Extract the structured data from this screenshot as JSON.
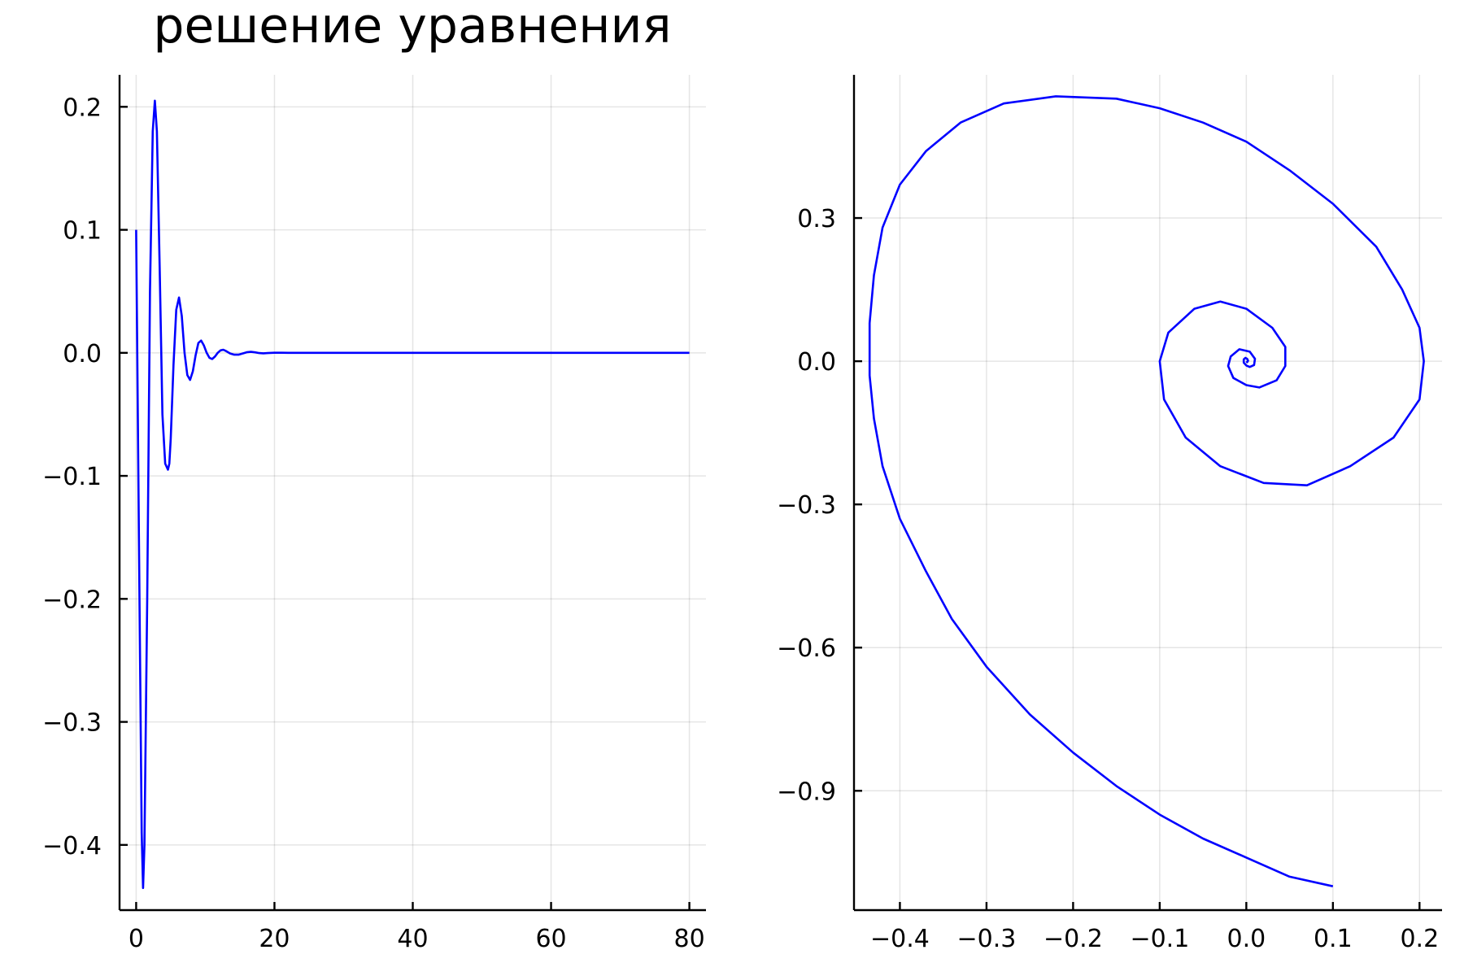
{
  "chart_data": [
    {
      "type": "line",
      "title": "решение уравнения",
      "xlabel": "",
      "ylabel": "",
      "xlim": [
        -2.4,
        82.4
      ],
      "ylim": [
        -0.453,
        0.226
      ],
      "xticks": [
        0,
        20,
        40,
        60,
        80
      ],
      "xtick_labels": [
        "0",
        "20",
        "40",
        "60",
        "80"
      ],
      "yticks": [
        -0.4,
        -0.3,
        -0.2,
        -0.1,
        0.0,
        0.1,
        0.2
      ],
      "ytick_labels": [
        "−0.4",
        "−0.3",
        "−0.2",
        "−0.1",
        "0.0",
        "0.1",
        "0.2"
      ],
      "grid": true,
      "legend": "none",
      "series": [
        {
          "color": "#0000ff",
          "x": [
            0,
            0.4,
            0.8,
            1.0,
            1.2,
            1.6,
            2.0,
            2.4,
            2.7,
            3.0,
            3.4,
            3.8,
            4.2,
            4.6,
            4.8,
            5.0,
            5.4,
            5.8,
            6.2,
            6.6,
            7.0,
            7.4,
            7.8,
            8.2,
            8.6,
            9.0,
            9.4,
            9.8,
            10.2,
            10.6,
            11.0,
            11.4,
            11.8,
            12.2,
            12.6,
            13.0,
            13.6,
            14.2,
            14.8,
            15.4,
            16.0,
            16.6,
            17.2,
            17.8,
            18.4,
            19.0,
            20.0,
            21.0,
            22.0,
            24.0,
            26.0,
            30.0,
            40.0,
            50.0,
            60.0,
            70.0,
            80.0
          ],
          "y": [
            0.1,
            -0.15,
            -0.39,
            -0.435,
            -0.4,
            -0.2,
            0.05,
            0.18,
            0.205,
            0.18,
            0.07,
            -0.05,
            -0.09,
            -0.095,
            -0.09,
            -0.07,
            -0.01,
            0.035,
            0.045,
            0.03,
            0.0,
            -0.018,
            -0.022,
            -0.015,
            -0.002,
            0.008,
            0.01,
            0.006,
            0.0,
            -0.004,
            -0.005,
            -0.003,
            0.0,
            0.002,
            0.0025,
            0.0015,
            -0.0005,
            -0.0015,
            -0.0015,
            -0.0005,
            0.0005,
            0.0008,
            0.0004,
            -0.0002,
            -0.0004,
            -0.0002,
            0.0001,
            0.0001,
            0.0,
            0.0,
            0.0,
            0.0,
            0.0,
            0.0,
            0.0,
            0.0,
            0.0
          ]
        }
      ]
    },
    {
      "type": "line",
      "title": "",
      "xlabel": "",
      "ylabel": "",
      "xlim": [
        -0.453,
        0.226
      ],
      "ylim": [
        -1.15,
        0.6
      ],
      "xticks": [
        -0.4,
        -0.3,
        -0.2,
        -0.1,
        0.0,
        0.1,
        0.2
      ],
      "xtick_labels": [
        "−0.4",
        "−0.3",
        "−0.2",
        "−0.1",
        "0.0",
        "0.1",
        "0.2"
      ],
      "yticks": [
        -0.9,
        -0.6,
        -0.3,
        0.0,
        0.3
      ],
      "ytick_labels": [
        "−0.9",
        "−0.6",
        "−0.3",
        "0.0",
        "0.3"
      ],
      "grid": true,
      "legend": "none",
      "series": [
        {
          "color": "#0000ff",
          "x": [
            0.1,
            0.05,
            0.0,
            -0.05,
            -0.1,
            -0.15,
            -0.2,
            -0.25,
            -0.3,
            -0.34,
            -0.37,
            -0.4,
            -0.42,
            -0.43,
            -0.435,
            -0.435,
            -0.43,
            -0.42,
            -0.4,
            -0.37,
            -0.33,
            -0.28,
            -0.22,
            -0.15,
            -0.1,
            -0.05,
            0.0,
            0.05,
            0.1,
            0.15,
            0.18,
            0.2,
            0.205,
            0.2,
            0.17,
            0.12,
            0.07,
            0.02,
            -0.03,
            -0.07,
            -0.095,
            -0.1,
            -0.09,
            -0.06,
            -0.03,
            0.0,
            0.03,
            0.045,
            0.045,
            0.035,
            0.015,
            0.0,
            -0.015,
            -0.021,
            -0.018,
            -0.008,
            0.004,
            0.01,
            0.009,
            0.004,
            0.0,
            -0.003,
            -0.003,
            -0.001,
            0.001,
            0.002,
            0.001,
            0.0
          ],
          "y": [
            -1.1,
            -1.08,
            -1.04,
            -1.0,
            -0.95,
            -0.89,
            -0.82,
            -0.74,
            -0.64,
            -0.54,
            -0.44,
            -0.33,
            -0.22,
            -0.12,
            -0.03,
            0.08,
            0.18,
            0.28,
            0.37,
            0.44,
            0.5,
            0.54,
            0.555,
            0.55,
            0.53,
            0.5,
            0.46,
            0.4,
            0.33,
            0.24,
            0.15,
            0.07,
            0.0,
            -0.08,
            -0.16,
            -0.22,
            -0.26,
            -0.255,
            -0.22,
            -0.16,
            -0.08,
            0.0,
            0.06,
            0.11,
            0.125,
            0.11,
            0.07,
            0.03,
            -0.01,
            -0.04,
            -0.055,
            -0.05,
            -0.035,
            -0.01,
            0.01,
            0.025,
            0.02,
            0.005,
            -0.008,
            -0.012,
            -0.009,
            -0.003,
            0.004,
            0.007,
            0.005,
            0.001,
            -0.002,
            0.0
          ]
        }
      ]
    }
  ]
}
